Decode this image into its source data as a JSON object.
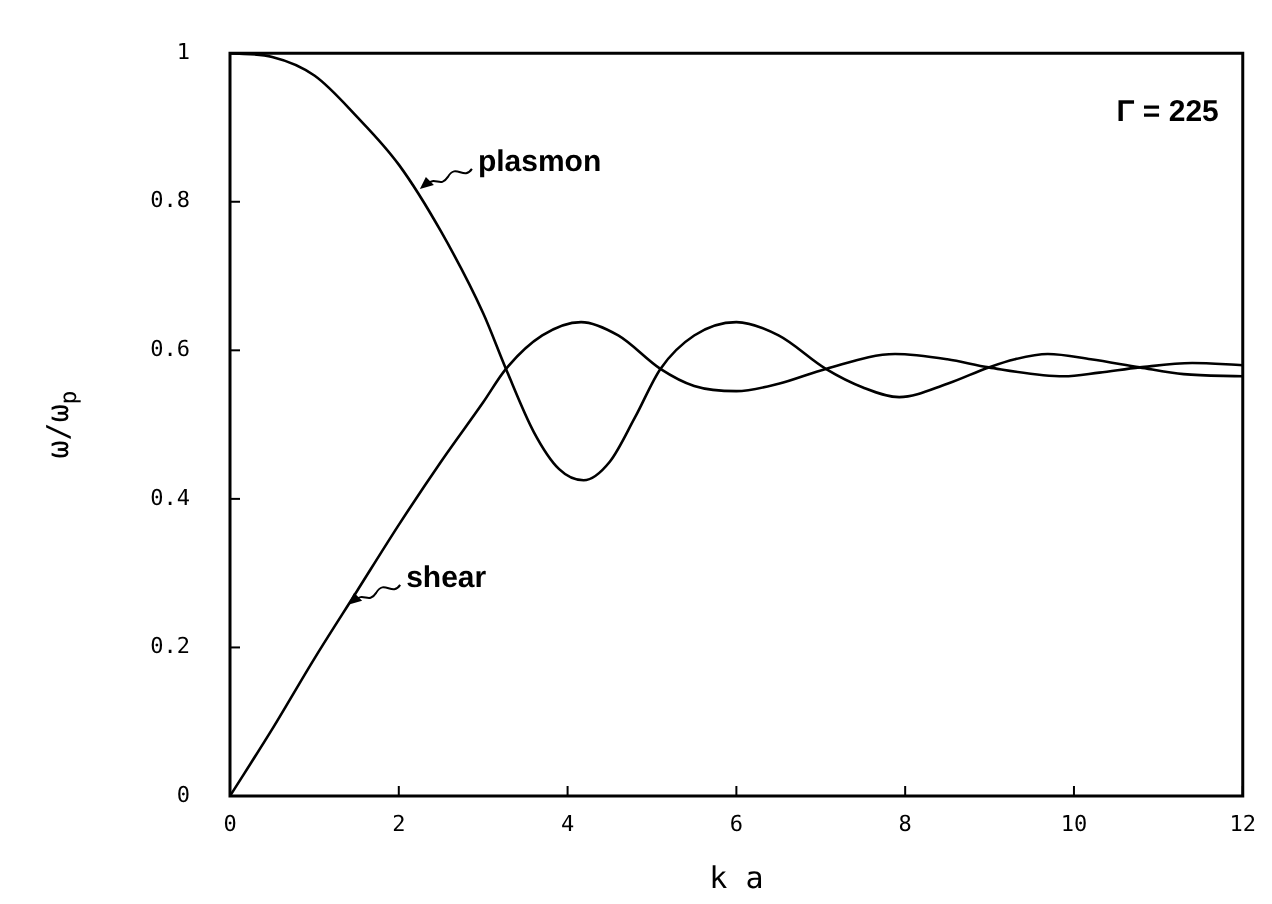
{
  "chart_data": {
    "type": "line",
    "xlabel": "k a",
    "ylabel": "ω/ω$_{p}$",
    "xlim": [
      0,
      12
    ],
    "xticks": [
      0,
      2,
      4,
      6,
      8,
      10,
      12
    ],
    "ylim": [
      0,
      1
    ],
    "yticks": [
      0,
      0.2,
      0.4,
      0.6,
      0.8,
      1
    ],
    "grid": false,
    "legend": false,
    "marker": "none",
    "line_style": "solid",
    "series": [
      {
        "color": "#000000",
        "x": [
          0,
          0.5,
          1,
          1.5,
          2,
          2.5,
          3,
          3.27,
          3.6,
          3.9,
          4.19,
          4.5,
          4.8,
          5.1,
          5.5,
          6,
          6.5,
          7.06,
          7.5,
          7.93,
          8.5,
          8.99,
          9.3,
          9.69,
          10.2,
          10.78,
          11.3,
          12
        ],
        "values": [
          1,
          0.995,
          0.97,
          0.915,
          0.85,
          0.76,
          0.65,
          0.575,
          0.49,
          0.44,
          0.425,
          0.45,
          0.51,
          0.575,
          0.62,
          0.638,
          0.62,
          0.575,
          0.55,
          0.537,
          0.555,
          0.577,
          0.588,
          0.595,
          0.588,
          0.577,
          0.568,
          0.565
        ]
      },
      {
        "color": "#000000",
        "x": [
          0,
          0.5,
          1,
          1.5,
          2,
          2.5,
          3,
          3.27,
          3.7,
          4.16,
          4.6,
          5.1,
          5.5,
          6,
          6.5,
          7.06,
          7.88,
          8.5,
          8.99,
          9.88,
          10.3,
          10.78,
          11.4,
          12
        ],
        "values": [
          0,
          0.09,
          0.185,
          0.275,
          0.365,
          0.45,
          0.53,
          0.575,
          0.62,
          0.638,
          0.62,
          0.575,
          0.552,
          0.545,
          0.555,
          0.575,
          0.595,
          0.588,
          0.577,
          0.565,
          0.57,
          0.577,
          0.583,
          0.58
        ]
      }
    ],
    "annotations": [
      {
        "text": "plasmon",
        "x": 2.25,
        "y": 0.82
      },
      {
        "text": "shear",
        "x": 1.4,
        "y": 0.26
      },
      "Γ = 225"
    ]
  }
}
